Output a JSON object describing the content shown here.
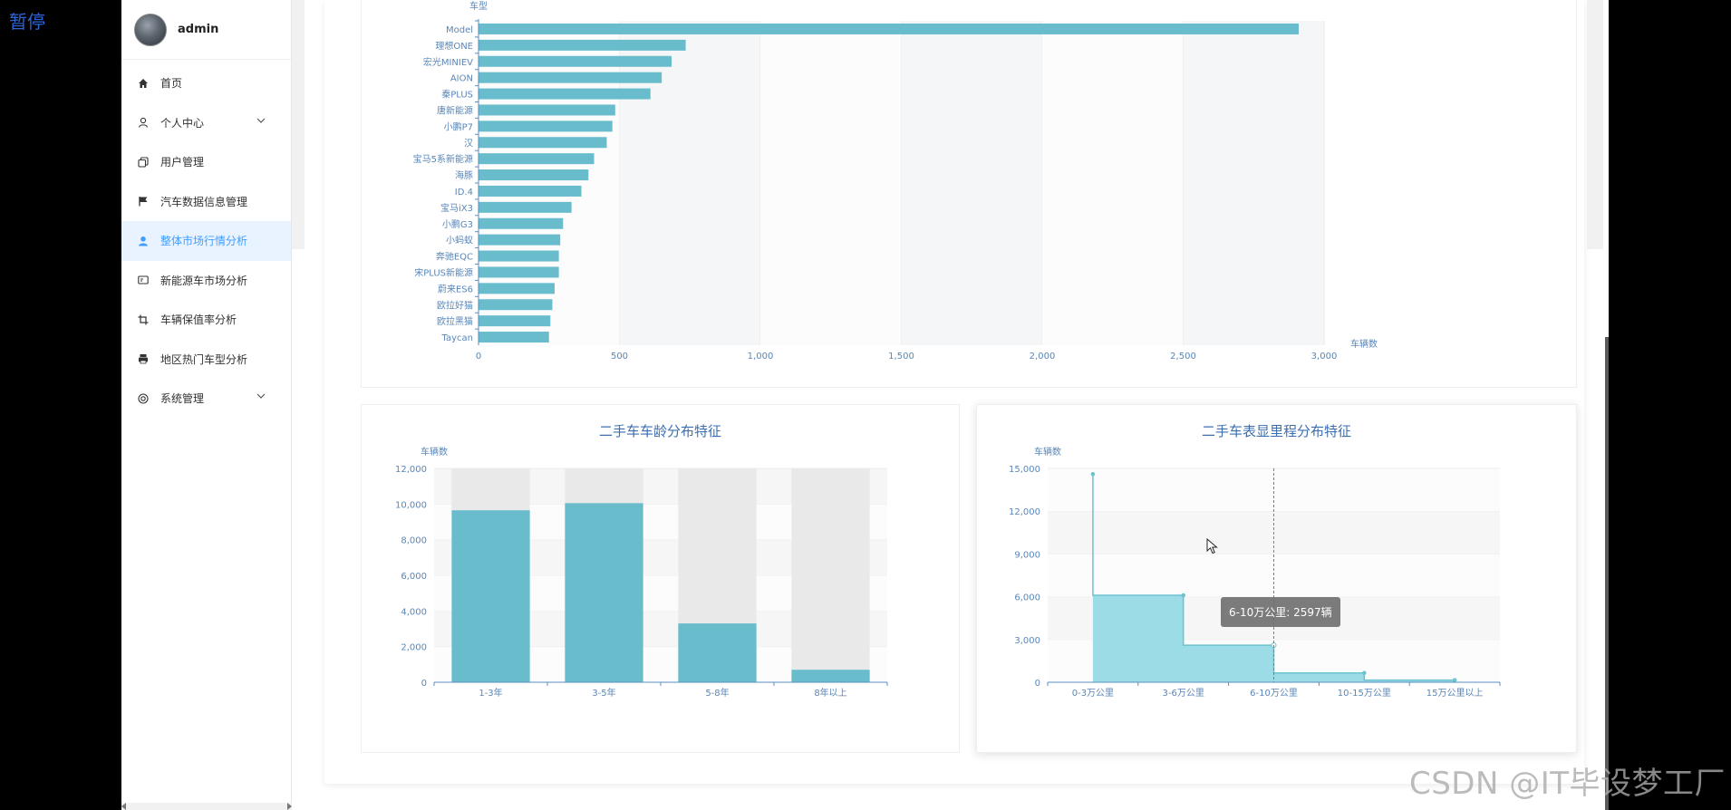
{
  "overlay": {
    "pause_label": "暂停",
    "watermark": "CSDN @IT毕设梦工厂"
  },
  "sidebar": {
    "username": "admin",
    "items": [
      {
        "label": "首页",
        "icon": "home-icon"
      },
      {
        "label": "个人中心",
        "icon": "user-icon",
        "expandable": true
      },
      {
        "label": "用户管理",
        "icon": "copy-icon"
      },
      {
        "label": "汽车数据信息管理",
        "icon": "flag-icon"
      },
      {
        "label": "整体市场行情分析",
        "icon": "user-solid-icon",
        "active": true
      },
      {
        "label": "新能源车市场分析",
        "icon": "postcard-icon"
      },
      {
        "label": "车辆保值率分析",
        "icon": "crop-icon"
      },
      {
        "label": "地区热门车型分析",
        "icon": "printer-icon"
      },
      {
        "label": "系统管理",
        "icon": "help-icon",
        "expandable": true
      }
    ]
  },
  "colors": {
    "bar": "#68bccb",
    "area": "#9bdce6",
    "line": "#6cc2cf",
    "axis": "#5b8fc2",
    "accent": "#409eff"
  },
  "chart_data": [
    {
      "type": "bar",
      "orientation": "horizontal",
      "ylabel": "车型",
      "xlabel": "车辆数",
      "categories": [
        "Model",
        "理想ONE",
        "宏光MINIEV",
        "AION",
        "秦PLUS",
        "唐新能源",
        "小鹏P7",
        "汉",
        "宝马5系新能源",
        "海豚",
        "ID.4",
        "宝马iX3",
        "小鹏G3",
        "小蚂蚁",
        "奔驰EQC",
        "宋PLUS新能源",
        "蔚来ES6",
        "欧拉好猫",
        "欧拉黑猫",
        "Taycan"
      ],
      "values": [
        2910,
        735,
        685,
        650,
        610,
        485,
        475,
        455,
        410,
        390,
        365,
        330,
        300,
        290,
        285,
        285,
        270,
        262,
        255,
        250
      ],
      "xlim": [
        0,
        3000
      ],
      "xticks": [
        "0",
        "500",
        "1,000",
        "1,500",
        "2,000",
        "2,500",
        "3,000"
      ]
    },
    {
      "type": "bar",
      "title": "二手车车龄分布特征",
      "ylabel": "车辆数",
      "categories": [
        "1-3年",
        "3-5年",
        "5-8年",
        "8年以上"
      ],
      "values": [
        9650,
        10050,
        3300,
        700
      ],
      "ylim": [
        0,
        12000
      ],
      "yticks": [
        "0",
        "2,000",
        "4,000",
        "6,000",
        "8,000",
        "10,000",
        "12,000"
      ]
    },
    {
      "type": "area",
      "title": "二手车表显里程分布特征",
      "ylabel": "车辆数",
      "categories": [
        "0-3万公里",
        "3-6万公里",
        "6-10万公里",
        "10-15万公里",
        "15万公里以上"
      ],
      "values": [
        14600,
        6100,
        2597,
        650,
        150
      ],
      "ylim": [
        0,
        15000
      ],
      "yticks": [
        "0",
        "3,000",
        "6,000",
        "9,000",
        "12,000",
        "15,000"
      ],
      "tooltip": "6-10万公里: 2597辆"
    }
  ]
}
